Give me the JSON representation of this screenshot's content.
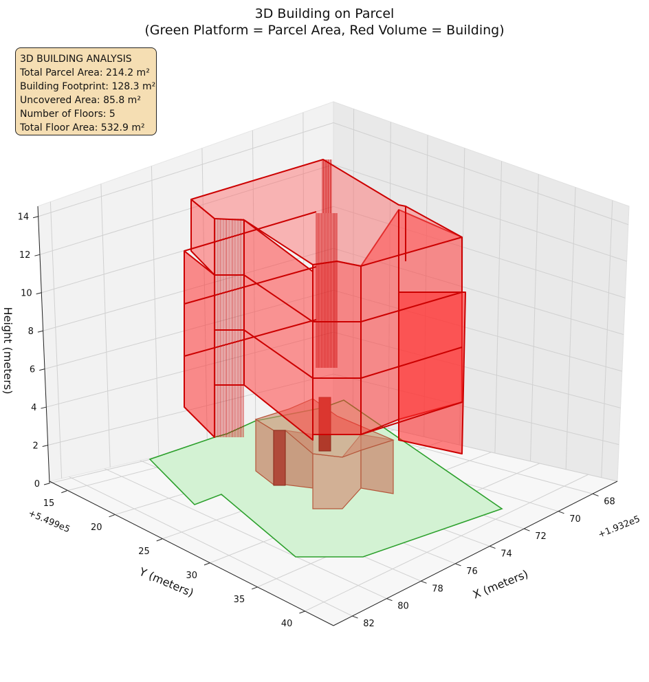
{
  "title": {
    "line1": "3D Building on Parcel",
    "line2": "(Green Platform = Parcel Area, Red Volume = Building)"
  },
  "info_box": {
    "heading": "3D BUILDING ANALYSIS",
    "lines": [
      "Total Parcel Area: 214.2 m²",
      "Building Footprint: 128.3 m²",
      "Uncovered Area: 85.8 m²",
      "Number of Floors: 5",
      "Total Floor Area: 532.9 m²"
    ]
  },
  "colors": {
    "parcel_fill": "#d3f2d3",
    "parcel_edge": "#2ca02c",
    "building_fill": "#ff0000",
    "building_edge": "#cc0000",
    "ground_floor_fill": "#c9826b",
    "pane": "#f2f2f2",
    "grid": "#cccccc",
    "info_box_bg": "#f5deb3"
  },
  "chart_data": {
    "type": "3d-extruded-polygon",
    "title": "3D Building on Parcel\n(Green Platform = Parcel Area, Red Volume = Building)",
    "axes": {
      "x": {
        "label": "X (meters)",
        "offset_label": "+1.932e5",
        "ticks": [
          "68",
          "70",
          "72",
          "74",
          "76",
          "78",
          "80",
          "82"
        ]
      },
      "y": {
        "label": "Y (meters)",
        "offset_label": "+5.499e5",
        "ticks": [
          "15",
          "20",
          "25",
          "30",
          "35",
          "40"
        ]
      },
      "z": {
        "label": "Height (meters)",
        "ticks": [
          "0",
          "2",
          "4",
          "6",
          "8",
          "10",
          "12",
          "14"
        ],
        "range": [
          0,
          15
        ]
      }
    },
    "grid": true,
    "stats": {
      "total_parcel_area_m2": 214.2,
      "building_footprint_m2": 128.3,
      "uncovered_area_m2": 85.8,
      "number_of_floors": 5,
      "total_floor_area_m2": 532.9
    }
  }
}
